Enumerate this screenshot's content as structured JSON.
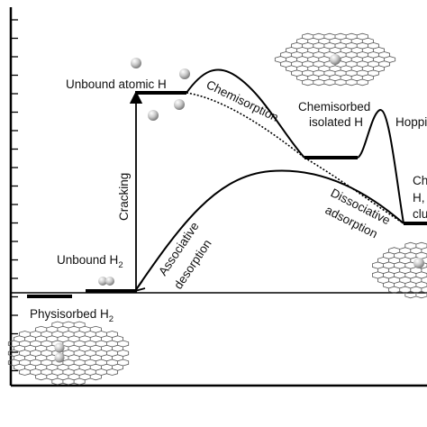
{
  "labels": {
    "unbound_atomic_h": "Unbound atomic H",
    "chemisorption": "Chemisorption",
    "chemisorbed_line1": "Chemisorbed",
    "chemisorbed_line2": "isolated H",
    "hopping": "Hoppi",
    "cluster_line1": "Ch",
    "cluster_line2": "H,",
    "cluster_line3": "clu",
    "cracking": "Cracking",
    "dissociative_line1": "Dissociative",
    "dissociative_line2": "adsorption",
    "associative_line1": "Associative",
    "associative_line2": "desorption",
    "unbound_h2_text": "Unbound H",
    "unbound_h2_sub": "2",
    "physisorbed_text": "Physisorbed H",
    "physisorbed_sub": "2"
  },
  "colors": {
    "line": "#000000",
    "text": "#111111",
    "sphere_light": "#f2f2f2",
    "sphere_dark": "#8a8a8a"
  }
}
